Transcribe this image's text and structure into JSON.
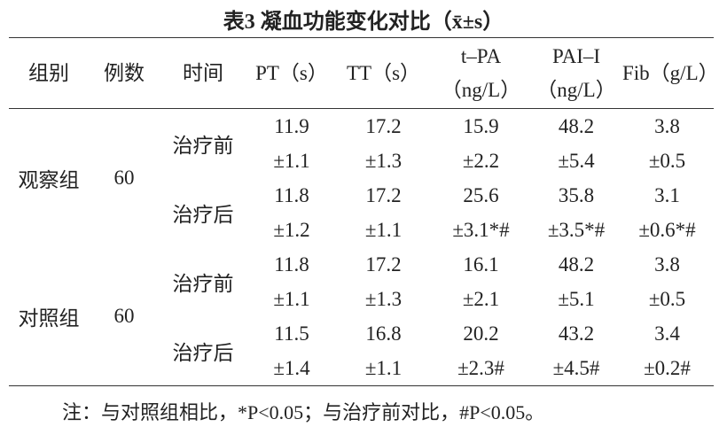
{
  "title": "表3 凝血功能变化对比（x̄±s）",
  "table": {
    "headers": [
      "组别",
      "例数",
      "时间",
      "PT（s）",
      "TT（s）",
      "t–PA（ng/L）",
      "PAI–I（ng/L）",
      "Fib（g/L）"
    ],
    "groups": [
      {
        "name": "观察组",
        "n": "60",
        "rows": [
          {
            "time": "治疗前",
            "cells": [
              [
                "11.9",
                "±1.1"
              ],
              [
                "17.2",
                "±1.3"
              ],
              [
                "15.9",
                "±2.2"
              ],
              [
                "48.2",
                "±5.4"
              ],
              [
                "3.8",
                "±0.5"
              ]
            ]
          },
          {
            "time": "治疗后",
            "cells": [
              [
                "11.8",
                "±1.2"
              ],
              [
                "17.2",
                "±1.1"
              ],
              [
                "25.6",
                "±3.1*#"
              ],
              [
                "35.8",
                "±3.5*#"
              ],
              [
                "3.1",
                "±0.6*#"
              ]
            ]
          }
        ]
      },
      {
        "name": "对照组",
        "n": "60",
        "rows": [
          {
            "time": "治疗前",
            "cells": [
              [
                "11.8",
                "±1.1"
              ],
              [
                "17.2",
                "±1.3"
              ],
              [
                "16.1",
                "±2.1"
              ],
              [
                "48.2",
                "±5.1"
              ],
              [
                "3.8",
                "±0.5"
              ]
            ]
          },
          {
            "time": "治疗后",
            "cells": [
              [
                "11.5",
                "±1.4"
              ],
              [
                "16.8",
                "±1.1"
              ],
              [
                "20.2",
                "±2.3#"
              ],
              [
                "43.2",
                "±4.5#"
              ],
              [
                "3.4",
                "±0.2#"
              ]
            ]
          }
        ]
      }
    ]
  },
  "footnote": "注：与对照组相比，*P<0.05；与治疗前对比，#P<0.05。"
}
